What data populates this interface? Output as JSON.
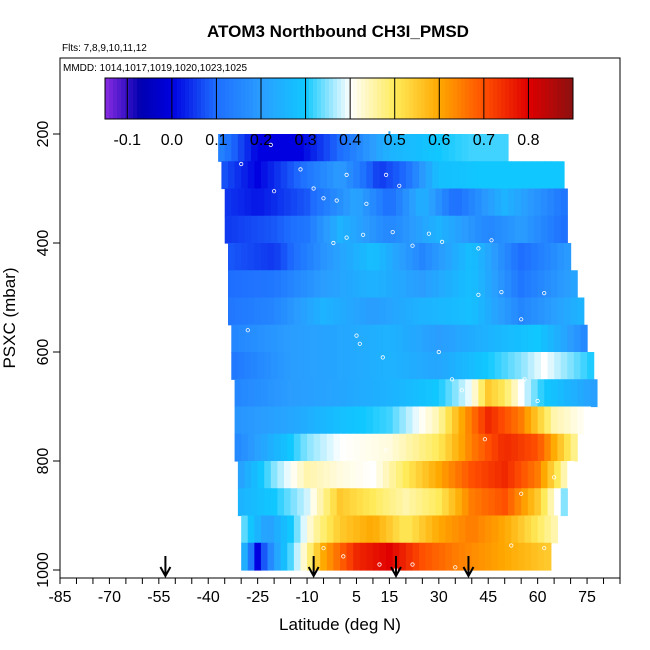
{
  "chart_data": {
    "type": "heatmap",
    "title": "ATOM3 Northbound CH3I_PMSD",
    "flights_label": "Flts: 7,8,9,10,11,12",
    "dates_label": "MMDD: 1014,1017,1019,1020,1023,1025",
    "xlabel": "Latitude (deg N)",
    "ylabel": "PSXC (mbar)",
    "xlim": [
      -85,
      85
    ],
    "ylim": [
      1000,
      0
    ],
    "x_ticks": [
      -85,
      -70,
      -55,
      -40,
      -25,
      -10,
      5,
      15,
      30,
      45,
      60,
      75
    ],
    "x_tick_labels": [
      "-85",
      "-70",
      "-55",
      "-40",
      "-25",
      "-10",
      "5",
      "15",
      "30",
      "45",
      "60",
      "75"
    ],
    "y_ticks": [
      200,
      400,
      600,
      800,
      1000
    ],
    "y_tick_labels": [
      "200",
      "400",
      "600",
      "800",
      "1000"
    ],
    "colorbar": {
      "range": [
        -0.15,
        0.9
      ],
      "tick_values": [
        -0.1,
        0.0,
        0.1,
        0.2,
        0.3,
        0.4,
        0.5,
        0.6,
        0.7,
        0.8
      ],
      "tick_labels": [
        "-0.1",
        "0.0",
        "0.1",
        "0.2",
        "0.3",
        "0.4",
        "0.5",
        "0.6",
        "0.7",
        "0.8"
      ],
      "stops": [
        {
          "value": -0.15,
          "color": "#8a2be2"
        },
        {
          "value": -0.07,
          "color": "#0000b0"
        },
        {
          "value": 0.0,
          "color": "#0000e0"
        },
        {
          "value": 0.1,
          "color": "#1e6eff"
        },
        {
          "value": 0.2,
          "color": "#2a9dff"
        },
        {
          "value": 0.3,
          "color": "#10c8ff"
        },
        {
          "value": 0.4,
          "color": "#ffffff"
        },
        {
          "value": 0.5,
          "color": "#ffeb5a"
        },
        {
          "value": 0.6,
          "color": "#ffa800"
        },
        {
          "value": 0.7,
          "color": "#ff5000"
        },
        {
          "value": 0.8,
          "color": "#e00000"
        },
        {
          "value": 0.9,
          "color": "#8b1010"
        }
      ]
    },
    "arrows_latitude": [
      -53,
      -8,
      17,
      39
    ],
    "rows": [
      {
        "p": 225,
        "lat_min": -37,
        "lat_max": 50,
        "x": [
          -37,
          -25,
          -12,
          0,
          15,
          30,
          40,
          50
        ],
        "v": [
          0.15,
          0.0,
          0.0,
          0.1,
          0.25,
          0.3,
          0.32,
          0.32
        ]
      },
      {
        "p": 275,
        "lat_min": -36,
        "lat_max": 67,
        "x": [
          -36,
          -25,
          -12,
          0,
          12,
          20,
          30,
          45,
          67
        ],
        "v": [
          0.08,
          0.0,
          0.1,
          0.2,
          0.05,
          0.1,
          0.28,
          0.3,
          0.3
        ]
      },
      {
        "p": 325,
        "lat_min": -35,
        "lat_max": 68,
        "x": [
          -35,
          -25,
          -10,
          5,
          15,
          25,
          35,
          50,
          68
        ],
        "v": [
          0.05,
          0.02,
          0.08,
          0.22,
          0.1,
          0.25,
          0.1,
          0.25,
          0.12
        ]
      },
      {
        "p": 375,
        "lat_min": -35,
        "lat_max": 69,
        "x": [
          -35,
          -20,
          -10,
          0,
          15,
          30,
          45,
          55,
          69
        ],
        "v": [
          0.05,
          0.08,
          0.12,
          0.25,
          0.15,
          0.25,
          0.15,
          0.2,
          0.1
        ]
      },
      {
        "p": 425,
        "lat_min": -34,
        "lat_max": 70,
        "x": [
          -34,
          -20,
          -5,
          10,
          25,
          40,
          55,
          70
        ],
        "v": [
          0.08,
          0.05,
          0.18,
          0.28,
          0.15,
          0.28,
          0.1,
          0.2
        ]
      },
      {
        "p": 475,
        "lat_min": -34,
        "lat_max": 72,
        "x": [
          -34,
          -20,
          -5,
          10,
          25,
          40,
          55,
          72
        ],
        "v": [
          0.1,
          0.12,
          0.2,
          0.25,
          0.2,
          0.28,
          0.12,
          0.22
        ]
      },
      {
        "p": 525,
        "lat_min": -34,
        "lat_max": 73,
        "x": [
          -34,
          -20,
          -5,
          10,
          25,
          40,
          55,
          73
        ],
        "v": [
          0.12,
          0.15,
          0.25,
          0.2,
          0.25,
          0.28,
          0.15,
          0.25
        ]
      },
      {
        "p": 575,
        "lat_min": -33,
        "lat_max": 75,
        "x": [
          -33,
          -15,
          0,
          15,
          30,
          45,
          60,
          75
        ],
        "v": [
          0.15,
          0.2,
          0.22,
          0.25,
          0.2,
          0.25,
          0.3,
          0.15
        ]
      },
      {
        "p": 625,
        "lat_min": -33,
        "lat_max": 77,
        "x": [
          -33,
          -15,
          0,
          15,
          30,
          45,
          55,
          62,
          77
        ],
        "v": [
          0.12,
          0.2,
          0.22,
          0.25,
          0.22,
          0.3,
          0.35,
          0.4,
          0.3
        ]
      },
      {
        "p": 675,
        "lat_min": -32,
        "lat_max": 78,
        "x": [
          -32,
          -15,
          0,
          15,
          30,
          40,
          45,
          50,
          55,
          62,
          78
        ],
        "v": [
          0.15,
          0.2,
          0.22,
          0.25,
          0.3,
          0.4,
          0.55,
          0.5,
          0.4,
          0.3,
          0.2
        ]
      },
      {
        "p": 725,
        "lat_min": -32,
        "lat_max": 75,
        "x": [
          -32,
          -15,
          0,
          15,
          30,
          37,
          45,
          55,
          65,
          75
        ],
        "v": [
          0.18,
          0.22,
          0.28,
          0.32,
          0.45,
          0.6,
          0.75,
          0.65,
          0.45,
          0.4
        ]
      },
      {
        "p": 775,
        "lat_min": -32,
        "lat_max": 72,
        "x": [
          -32,
          -20,
          -10,
          0,
          15,
          30,
          40,
          50,
          60,
          72
        ],
        "v": [
          0.15,
          0.25,
          0.35,
          0.4,
          0.42,
          0.5,
          0.65,
          0.75,
          0.7,
          0.45
        ]
      },
      {
        "p": 825,
        "lat_min": -31,
        "lat_max": 70,
        "x": [
          -31,
          -20,
          -10,
          0,
          10,
          20,
          30,
          40,
          50,
          60,
          70
        ],
        "v": [
          0.2,
          0.35,
          0.45,
          0.42,
          0.4,
          0.5,
          0.6,
          0.7,
          0.75,
          0.65,
          0.4
        ]
      },
      {
        "p": 875,
        "lat_min": -31,
        "lat_max": 68,
        "x": [
          -31,
          -20,
          -10,
          0,
          10,
          20,
          30,
          40,
          50,
          60,
          68
        ],
        "v": [
          0.25,
          0.3,
          0.38,
          0.55,
          0.5,
          0.45,
          0.5,
          0.65,
          0.7,
          0.55,
          0.35
        ]
      },
      {
        "p": 925,
        "lat_min": -30,
        "lat_max": 65,
        "x": [
          -30,
          -22,
          -15,
          -8,
          0,
          10,
          20,
          30,
          40,
          50,
          65
        ],
        "v": [
          0.35,
          0.2,
          0.3,
          0.45,
          0.55,
          0.6,
          0.5,
          0.6,
          0.65,
          0.6,
          0.45
        ]
      },
      {
        "p": 975,
        "lat_min": -30,
        "lat_max": 63,
        "x": [
          -30,
          -25,
          -20,
          -12,
          -5,
          5,
          15,
          25,
          35,
          50,
          63
        ],
        "v": [
          0.3,
          0.0,
          0.2,
          0.4,
          0.6,
          0.75,
          0.8,
          0.7,
          0.65,
          0.6,
          0.55
        ]
      }
    ],
    "sample_points": [
      [
        -30,
        255
      ],
      [
        -21,
        220
      ],
      [
        -12,
        265
      ],
      [
        -20,
        305
      ],
      [
        -8,
        300
      ],
      [
        2,
        275
      ],
      [
        14,
        275
      ],
      [
        18,
        295
      ],
      [
        -5,
        318
      ],
      [
        -1,
        322
      ],
      [
        8,
        328
      ],
      [
        -2,
        400
      ],
      [
        2,
        390
      ],
      [
        7,
        385
      ],
      [
        16,
        380
      ],
      [
        27,
        383
      ],
      [
        22,
        405
      ],
      [
        31,
        398
      ],
      [
        42,
        410
      ],
      [
        46,
        395
      ],
      [
        49,
        490
      ],
      [
        62,
        492
      ],
      [
        55,
        540
      ],
      [
        42,
        495
      ],
      [
        -28,
        560
      ],
      [
        5,
        570
      ],
      [
        6,
        585
      ],
      [
        13,
        610
      ],
      [
        30,
        600
      ],
      [
        34,
        650
      ],
      [
        37,
        670
      ],
      [
        56,
        650
      ],
      [
        60,
        690
      ],
      [
        44,
        760
      ],
      [
        14,
        780
      ],
      [
        55,
        860
      ],
      [
        65,
        830
      ],
      [
        52,
        955
      ],
      [
        62,
        960
      ],
      [
        -5,
        960
      ],
      [
        1,
        975
      ],
      [
        12,
        990
      ],
      [
        17,
        1000
      ],
      [
        22,
        990
      ],
      [
        35,
        995
      ]
    ]
  }
}
